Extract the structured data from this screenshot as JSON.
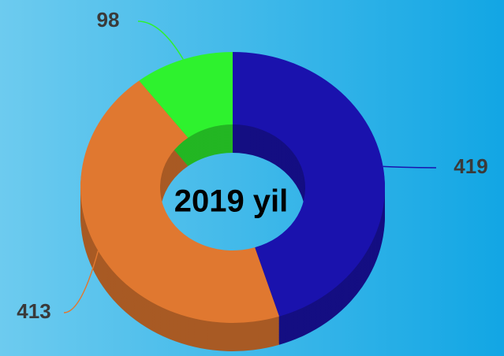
{
  "chart_data": {
    "type": "donut",
    "title": "2019 yil",
    "values": [
      419,
      413,
      98
    ],
    "colors": [
      "#1a12ad",
      "#e07830",
      "#2ef22e"
    ]
  }
}
